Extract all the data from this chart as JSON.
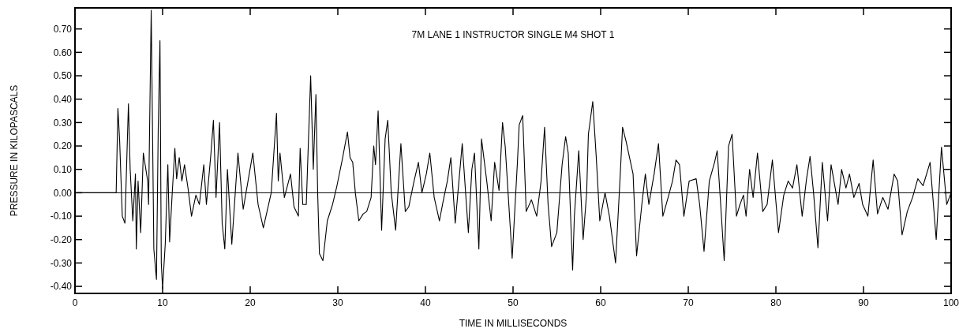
{
  "chart_data": {
    "type": "line",
    "title": "7M LANE 1 INSTRUCTOR SINGLE M4 SHOT 1",
    "xlabel": "TIME IN MILLISECONDS",
    "ylabel": "PRESSURE IN KILOPASCALS",
    "xlim": [
      0,
      100
    ],
    "ylim": [
      -0.43,
      0.79
    ],
    "xticks": [
      0,
      10,
      20,
      30,
      40,
      50,
      60,
      70,
      80,
      90,
      100
    ],
    "yticks": [
      {
        "value": -0.4,
        "label": "-0.40"
      },
      {
        "value": -0.3,
        "label": "-0.30"
      },
      {
        "value": -0.2,
        "label": "-0.20"
      },
      {
        "value": -0.1,
        "label": "-0.10"
      },
      {
        "value": 0,
        "label": "0.00"
      },
      {
        "value": 0.1,
        "label": "0.10"
      },
      {
        "value": 0.2,
        "label": "0.20"
      },
      {
        "value": 0.3,
        "label": "0.30"
      },
      {
        "value": 0.4,
        "label": "0.40"
      },
      {
        "value": 0.5,
        "label": "0.50"
      },
      {
        "value": 0.6,
        "label": "0.60"
      },
      {
        "value": 0.7,
        "label": "0.70"
      }
    ],
    "ref_lines": [
      {
        "axis": "y",
        "value": 0,
        "color": "#000000"
      }
    ],
    "grid": false,
    "marker": "none",
    "line_style": "solid",
    "series": [
      {
        "color": "#000000",
        "x": [
          0,
          2,
          4.7,
          4.9,
          5.1,
          5.4,
          5.7,
          6.1,
          6.3,
          6.6,
          6.9,
          7.0,
          7.2,
          7.5,
          7.8,
          8.3,
          8.4,
          8.7,
          9.0,
          9.3,
          9.5,
          9.7,
          9.85,
          10.0,
          10.3,
          10.6,
          10.8,
          11.1,
          11.4,
          11.6,
          11.9,
          12.2,
          12.5,
          12.9,
          13.3,
          13.8,
          14.2,
          14.7,
          15.0,
          15.5,
          15.8,
          16.1,
          16.5,
          16.8,
          17.1,
          17.4,
          17.9,
          18.6,
          19.2,
          20.3,
          20.9,
          21.5,
          22.4,
          23.0,
          23.2,
          23.4,
          23.9,
          24.6,
          25.0,
          25.5,
          25.7,
          26.0,
          26.4,
          26.9,
          27.2,
          27.5,
          27.7,
          27.9,
          28.3,
          28.8,
          29.4,
          29.9,
          30.5,
          30.8,
          31.1,
          31.4,
          31.7,
          32.0,
          32.4,
          32.9,
          33.3,
          33.8,
          34.1,
          34.3,
          34.6,
          35.0,
          35.4,
          35.7,
          36.1,
          36.6,
          37.2,
          37.7,
          38.1,
          38.7,
          39.2,
          39.6,
          40.1,
          40.5,
          41.0,
          41.6,
          42.0,
          42.5,
          42.9,
          43.4,
          44.2,
          44.9,
          45.3,
          45.6,
          46.1,
          46.4,
          47.0,
          47.5,
          47.9,
          48.4,
          48.8,
          49.1,
          49.9,
          50.5,
          50.7,
          51.1,
          51.5,
          52.1,
          52.7,
          53.2,
          53.6,
          54.0,
          54.4,
          55.0,
          55.6,
          56.0,
          56.3,
          56.8,
          57.0,
          57.5,
          58.0,
          58.4,
          58.6,
          59.1,
          59.5,
          59.9,
          60.5,
          61.0,
          61.7,
          62.2,
          62.5,
          62.9,
          63.7,
          64.1,
          64.7,
          65.1,
          65.5,
          66.1,
          66.6,
          67.1,
          67.7,
          68.2,
          68.6,
          69.0,
          69.5,
          70.1,
          70.9,
          71.3,
          71.8,
          72.4,
          73.0,
          73.3,
          73.7,
          74.1,
          74.6,
          75.0,
          75.5,
          75.9,
          76.3,
          76.6,
          77.0,
          77.4,
          77.9,
          78.5,
          79.0,
          79.6,
          80.3,
          80.9,
          81.4,
          81.9,
          82.4,
          83.0,
          83.5,
          83.9,
          84.3,
          84.8,
          85.3,
          85.9,
          86.3,
          87.1,
          87.5,
          88.0,
          88.4,
          88.9,
          89.5,
          89.9,
          90.5,
          91.1,
          91.6,
          92.2,
          92.8,
          93.5,
          93.9,
          94.4,
          95.0,
          95.6,
          96.2,
          96.8,
          97.6,
          98.3,
          98.9,
          99.5,
          100
        ],
        "values": [
          0,
          0,
          0,
          0.36,
          0.22,
          -0.1,
          -0.13,
          0.38,
          0.1,
          -0.12,
          0.08,
          -0.24,
          0.05,
          -0.17,
          0.17,
          0.05,
          -0.05,
          0.78,
          -0.24,
          -0.37,
          0.27,
          0.65,
          -0.3,
          -0.41,
          -0.22,
          0.12,
          -0.21,
          0.0,
          0.19,
          0.06,
          0.15,
          0.05,
          0.12,
          0.02,
          -0.1,
          -0.01,
          -0.05,
          0.12,
          -0.05,
          0.16,
          0.31,
          -0.02,
          0.3,
          -0.13,
          -0.24,
          0.1,
          -0.22,
          0.17,
          -0.07,
          0.17,
          -0.05,
          -0.15,
          0.0,
          0.34,
          0.05,
          0.17,
          -0.02,
          0.08,
          -0.06,
          -0.1,
          0.19,
          -0.05,
          -0.05,
          0.5,
          0.1,
          0.42,
          0.0,
          -0.26,
          -0.29,
          -0.12,
          -0.05,
          0.03,
          0.14,
          0.2,
          0.26,
          0.15,
          0.13,
          0.0,
          -0.12,
          -0.09,
          -0.08,
          -0.02,
          0.2,
          0.12,
          0.35,
          -0.16,
          0.23,
          0.31,
          0.0,
          -0.16,
          0.21,
          -0.08,
          -0.06,
          0.05,
          0.13,
          0.0,
          0.08,
          0.17,
          -0.02,
          -0.12,
          -0.04,
          0.05,
          0.15,
          -0.13,
          0.21,
          -0.17,
          0.1,
          0.17,
          -0.24,
          0.23,
          0.05,
          -0.12,
          0.13,
          0.01,
          0.3,
          0.2,
          -0.28,
          0.13,
          0.29,
          0.33,
          -0.08,
          -0.03,
          -0.1,
          0.05,
          0.28,
          -0.05,
          -0.23,
          -0.17,
          0.12,
          0.24,
          0.17,
          -0.33,
          -0.1,
          0.18,
          -0.2,
          0.0,
          0.25,
          0.39,
          0.15,
          -0.12,
          0.0,
          -0.1,
          -0.3,
          0.05,
          0.28,
          0.22,
          0.08,
          -0.27,
          -0.05,
          0.08,
          -0.05,
          0.08,
          0.21,
          -0.1,
          -0.02,
          0.05,
          0.14,
          0.12,
          -0.1,
          0.05,
          0.06,
          -0.05,
          -0.25,
          0.05,
          0.13,
          0.18,
          -0.05,
          -0.29,
          0.2,
          0.25,
          -0.1,
          -0.05,
          -0.01,
          -0.1,
          0.1,
          -0.02,
          0.17,
          -0.08,
          -0.05,
          0.14,
          -0.17,
          -0.01,
          0.05,
          0.02,
          0.12,
          -0.1,
          0.06,
          0.155,
          0.0,
          -0.235,
          0.13,
          -0.12,
          0.12,
          -0.05,
          0.1,
          0.02,
          0.08,
          -0.02,
          0.04,
          -0.05,
          -0.1,
          0.14,
          -0.09,
          -0.02,
          -0.07,
          0.08,
          0.05,
          -0.18,
          -0.08,
          -0.02,
          0.06,
          0.03,
          0.13,
          -0.2,
          0.195,
          -0.05,
          0.0
        ]
      }
    ]
  }
}
